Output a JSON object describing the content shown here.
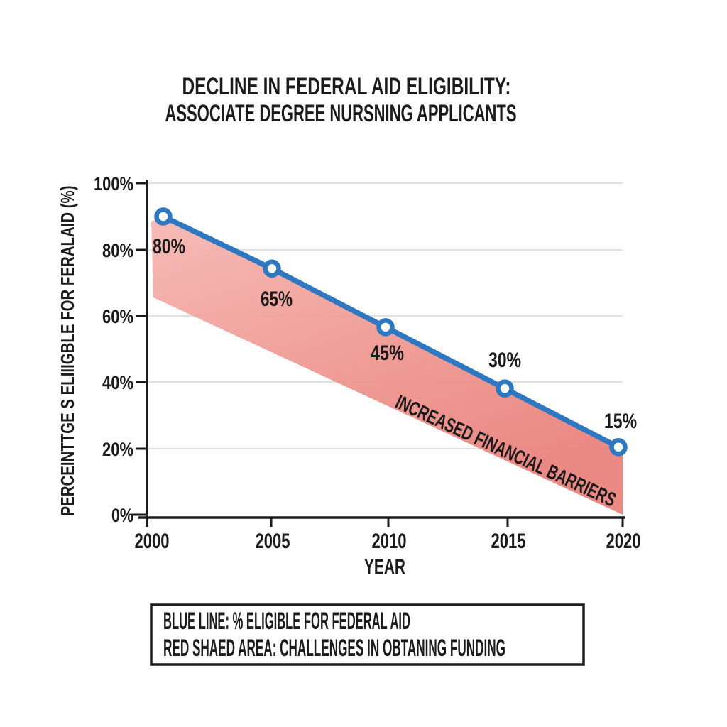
{
  "title": {
    "line1": "DECLINE IN FEDERAL AID ELIGIBILITY:",
    "line2": "ASSOCIATE DEGREE NURSNING APPLICANTS"
  },
  "chart_data": {
    "type": "line",
    "x": [
      2000,
      2005,
      2010,
      2015,
      2020
    ],
    "series": [
      {
        "name": "% eligible for federal aid",
        "values": [
          80,
          65,
          45,
          30,
          15
        ],
        "color": "#2E77C1",
        "marker": "open-circle"
      }
    ],
    "plotted_marker_percents": [
      90,
      74.3,
      56.6,
      38.1,
      20.4
    ],
    "point_labels": [
      "80%",
      "65%",
      "45%",
      "30%",
      "15%"
    ],
    "xlabel": "YEAR",
    "ylabel": "PERCEINTTGE S ELIIIGBLE FOR FERALAID (%)",
    "xticks": [
      "2000",
      "2005",
      "2010",
      "2015",
      "2020"
    ],
    "yticks": [
      "100%",
      "80%",
      "60%",
      "40%",
      "20%",
      "0%"
    ],
    "ylim": [
      0,
      100
    ],
    "grid": true,
    "area_label": "INCREASED FINANCIAL BARRIERS",
    "area_color_top": "#F6B4AF",
    "area_color_mid": "#EE938D",
    "area_color_bottom": "#E97C76",
    "line_color": "#2E77C1",
    "grid_color": "#E1E1E1",
    "axis_color": "#1b1b1b",
    "legend_position": "bottom"
  },
  "legend": {
    "line1": "BLUE LINE: % ELIGIBLE FOR FEDERAL AID",
    "line2": "RED SHAED AREA: CHALLENGES IN OBTANING FUNDING"
  }
}
